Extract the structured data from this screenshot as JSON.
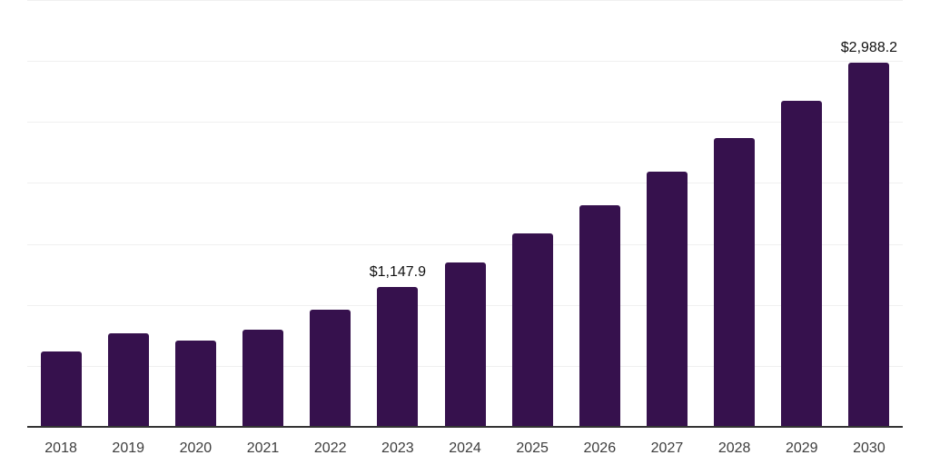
{
  "chart_data": {
    "type": "bar",
    "categories": [
      "2018",
      "2019",
      "2020",
      "2021",
      "2022",
      "2023",
      "2024",
      "2025",
      "2026",
      "2027",
      "2028",
      "2029",
      "2030"
    ],
    "values": [
      620,
      765,
      710,
      795,
      960,
      1147.9,
      1345,
      1585,
      1820,
      2090,
      2365,
      2670,
      2988.2
    ],
    "data_labels": [
      {
        "category": "2023",
        "text": "$1,147.9"
      },
      {
        "category": "2030",
        "text": "$2,988.2"
      }
    ],
    "title": "",
    "xlabel": "",
    "ylabel": "",
    "ylim": [
      0,
      3500
    ],
    "gridline_step": 500,
    "grid": true,
    "legend": false,
    "y_axis_labels_visible": false,
    "colors": {
      "bar": "#36114d",
      "gridline": "#f0f0f0",
      "axis_line": "#333333",
      "tick_label": "#3d3d3d",
      "data_label": "#111111",
      "background": "#ffffff"
    }
  }
}
